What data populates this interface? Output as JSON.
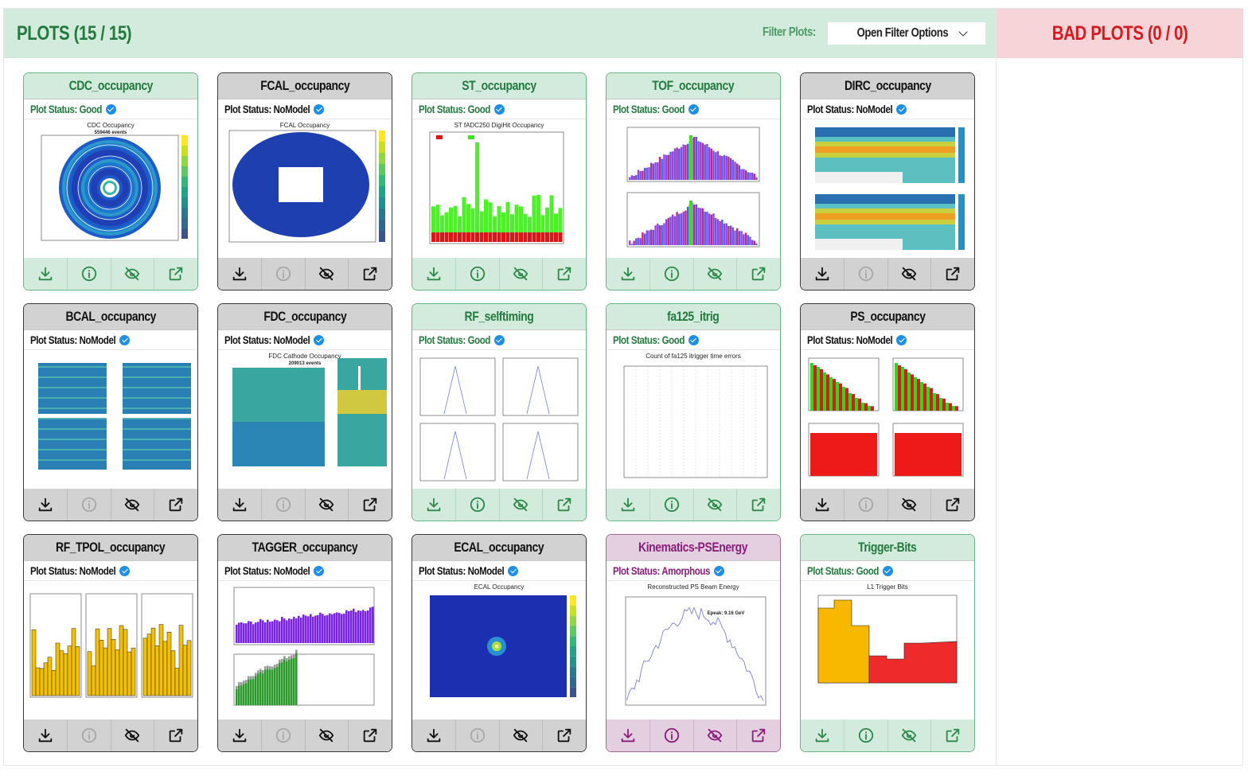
{
  "header": {
    "title": "PLOTS (15 / 15)",
    "filter_label": "Filter Plots:",
    "filter_button": "Open Filter Options",
    "bad_title": "BAD PLOTS (0 / 0)"
  },
  "status_prefix": "Plot Status: ",
  "colors": {
    "good_bg": "#d3ebdc",
    "good_text": "#237a3e",
    "bad_bg": "#f7d4d7",
    "bad_text": "#d61a1f",
    "nomodel_bg": "#d2d2d2",
    "amorphous_bg": "#e3cfe0",
    "amorphous_text": "#8a1f7b",
    "verified_badge": "#1f8fe6"
  },
  "actions": [
    "download-icon",
    "info-icon",
    "hide-icon",
    "open-external-icon"
  ],
  "plots": [
    {
      "name": "CDC_occupancy",
      "status": "Good",
      "kind": "good",
      "chart": "CDC Occupancy",
      "sub": "559446 events"
    },
    {
      "name": "FCAL_occupancy",
      "status": "NoModel",
      "kind": "none",
      "chart": "FCAL Occupancy",
      "sub": ""
    },
    {
      "name": "ST_occupancy",
      "status": "Good",
      "kind": "good",
      "chart": "ST fADC250 DigiHit Occupancy",
      "sub": ""
    },
    {
      "name": "TOF_occupancy",
      "status": "Good",
      "kind": "good",
      "chart": "",
      "sub": ""
    },
    {
      "name": "DIRC_occupancy",
      "status": "NoModel",
      "kind": "none",
      "chart": "",
      "sub": ""
    },
    {
      "name": "BCAL_occupancy",
      "status": "NoModel",
      "kind": "none",
      "chart": "",
      "sub": ""
    },
    {
      "name": "FDC_occupancy",
      "status": "NoModel",
      "kind": "none",
      "chart": "FDC Cathode Occupancy",
      "sub": "209013 events"
    },
    {
      "name": "RF_selftiming",
      "status": "Good",
      "kind": "good",
      "chart": "",
      "sub": ""
    },
    {
      "name": "fa125_itrig",
      "status": "Good",
      "kind": "good",
      "chart": "Count of fa125 itrigger time errors",
      "sub": ""
    },
    {
      "name": "PS_occupancy",
      "status": "NoModel",
      "kind": "none",
      "chart": "",
      "sub": ""
    },
    {
      "name": "RF_TPOL_occupancy",
      "status": "NoModel",
      "kind": "none",
      "chart": "",
      "sub": ""
    },
    {
      "name": "TAGGER_occupancy",
      "status": "NoModel",
      "kind": "none",
      "chart": "",
      "sub": ""
    },
    {
      "name": "ECAL_occupancy",
      "status": "NoModel",
      "kind": "none",
      "chart": "ECAL Occupancy",
      "sub": ""
    },
    {
      "name": "Kinematics-PSEnergy",
      "status": "Amorphous",
      "kind": "amor",
      "chart": "Reconstructed PS Beam Energy",
      "sub": "Epeak: 9.16 GeV"
    },
    {
      "name": "Trigger-Bits",
      "status": "Good",
      "kind": "good",
      "chart": "L1 Trigger Bits",
      "sub": ""
    }
  ]
}
